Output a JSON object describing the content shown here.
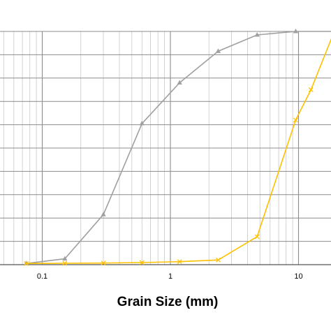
{
  "chart_data": {
    "type": "line",
    "xlabel": "Grain Size (mm)",
    "ylabel": "",
    "x_scale": "log",
    "xlim": [
      0.07,
      20
    ],
    "ylim": [
      0,
      100
    ],
    "grid": true,
    "x_tick_labels": [
      {
        "value": 0.1,
        "label": "0.1"
      },
      {
        "value": 1,
        "label": "1"
      },
      {
        "value": 10,
        "label": "10"
      }
    ],
    "series": [
      {
        "color": "#a0a0a0",
        "marker": "triangle",
        "points": [
          [
            0.075,
            0.5
          ],
          [
            0.15,
            2.5
          ],
          [
            0.3,
            21.5
          ],
          [
            0.6,
            60.5
          ],
          [
            1.18,
            78
          ],
          [
            2.36,
            91.5
          ],
          [
            4.75,
            98.5
          ],
          [
            9.5,
            100
          ],
          [
            19,
            100
          ]
        ]
      },
      {
        "color": "#ffc000",
        "marker": "x",
        "points": [
          [
            0.075,
            0.5
          ],
          [
            0.15,
            0.6
          ],
          [
            0.3,
            0.7
          ],
          [
            0.6,
            0.9
          ],
          [
            1.18,
            1.3
          ],
          [
            2.36,
            2.0
          ],
          [
            4.75,
            12
          ],
          [
            9.5,
            62
          ],
          [
            12.5,
            75
          ],
          [
            19,
            100
          ]
        ]
      }
    ]
  }
}
